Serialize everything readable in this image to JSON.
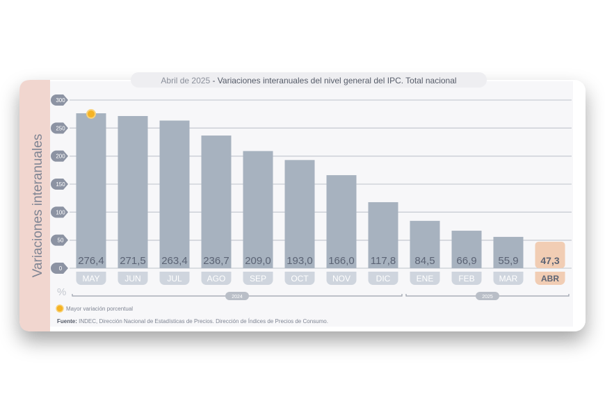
{
  "title": {
    "prefix": "Abril de 2025",
    "separator": " - ",
    "main": "Variaciones interanuales del nivel general del IPC. Total nacional"
  },
  "chart_data": {
    "type": "bar",
    "title": "Abril de 2025 - Variaciones interanuales del nivel general del IPC. Total nacional",
    "ylabel": "Variaciones interanuales",
    "yunit": "%",
    "ylim": [
      0,
      300
    ],
    "yticks": [
      0,
      50,
      100,
      150,
      200,
      250,
      300
    ],
    "grid": true,
    "categories": [
      "MAY",
      "JUN",
      "JUL",
      "AGO",
      "SEP",
      "OCT",
      "NOV",
      "DIC",
      "ENE",
      "FEB",
      "MAR",
      "ABR"
    ],
    "values": [
      276.4,
      271.5,
      263.4,
      236.7,
      209.0,
      193.0,
      166.0,
      117.8,
      84.5,
      66.9,
      55.9,
      47.3
    ],
    "value_labels": [
      "276,4",
      "271,5",
      "263,4",
      "236,7",
      "209,0",
      "193,0",
      "166,0",
      "117,8",
      "84,5",
      "66,9",
      "55,9",
      "47,3"
    ],
    "highlight_index": 11,
    "max_marker_index": 0,
    "year_groups": [
      {
        "label": "2024",
        "from": 0,
        "to": 7
      },
      {
        "label": "2025",
        "from": 8,
        "to": 11
      }
    ],
    "colors": {
      "bar": "#a7b2bf",
      "highlight": "#f1cdb4",
      "marker": "#f5b324",
      "pill": "#cfd5de"
    }
  },
  "legend": {
    "marker_label": "Mayor variación porcentual"
  },
  "source": {
    "label": "Fuente:",
    "text": " INDEC, Dirección Nacional de Estadísticas de Precios. Dirección de Índices de Precios de Consumo."
  }
}
